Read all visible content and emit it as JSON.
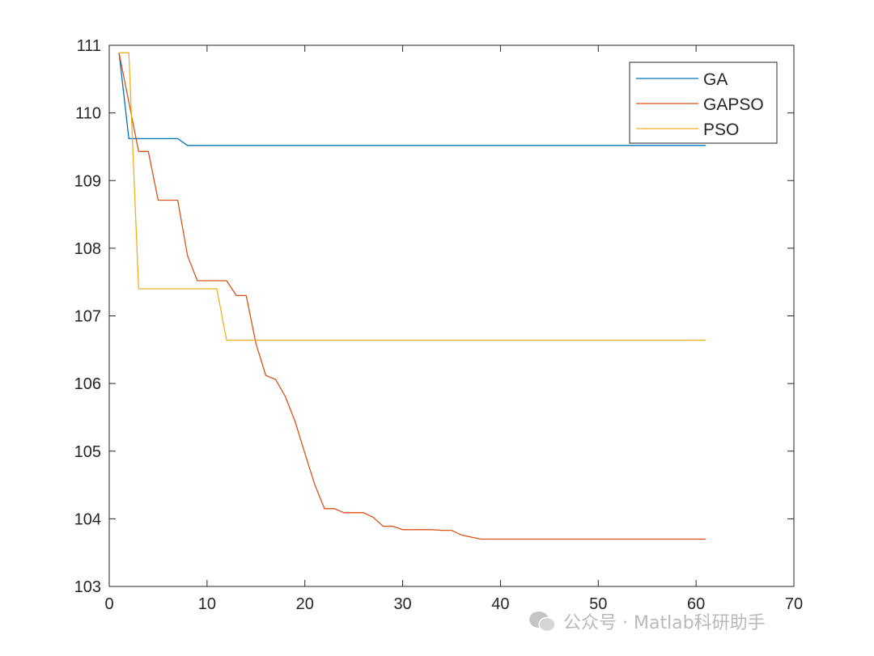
{
  "chart_data": {
    "type": "line",
    "title": "",
    "xlabel": "",
    "ylabel": "",
    "xlim": [
      0,
      70
    ],
    "ylim": [
      103,
      111
    ],
    "xticks": [
      0,
      10,
      20,
      30,
      40,
      50,
      60,
      70
    ],
    "yticks": [
      103,
      104,
      105,
      106,
      107,
      108,
      109,
      110,
      111
    ],
    "grid": false,
    "legend_placement": "top-right",
    "series": [
      {
        "name": "GA",
        "color": "#0072BD",
        "x": [
          1,
          2,
          7,
          8,
          61
        ],
        "y": [
          110.89,
          109.62,
          109.62,
          109.52,
          109.52
        ]
      },
      {
        "name": "GAPSO",
        "color": "#D95319",
        "x": [
          1,
          3,
          4,
          5,
          7,
          8,
          9,
          12,
          13,
          14,
          15,
          16,
          17,
          18,
          19,
          20,
          21,
          22,
          23,
          24,
          26,
          27,
          28,
          29,
          30,
          33,
          34,
          35,
          36,
          37,
          38,
          61
        ],
        "y": [
          110.89,
          109.43,
          109.43,
          108.71,
          108.71,
          107.89,
          107.52,
          107.52,
          107.3,
          107.3,
          106.59,
          106.12,
          106.06,
          105.81,
          105.44,
          104.97,
          104.51,
          104.15,
          104.15,
          104.09,
          104.09,
          104.02,
          103.89,
          103.89,
          103.84,
          103.84,
          103.83,
          103.83,
          103.76,
          103.73,
          103.7,
          103.7
        ]
      },
      {
        "name": "PSO",
        "color": "#EDB120",
        "x": [
          1,
          2,
          3,
          11,
          12,
          61
        ],
        "y": [
          110.89,
          110.89,
          107.4,
          107.4,
          106.64,
          106.64
        ]
      }
    ]
  },
  "watermark": {
    "text": "公众号 · Matlab科研助手",
    "icon": "wechat-icon"
  }
}
